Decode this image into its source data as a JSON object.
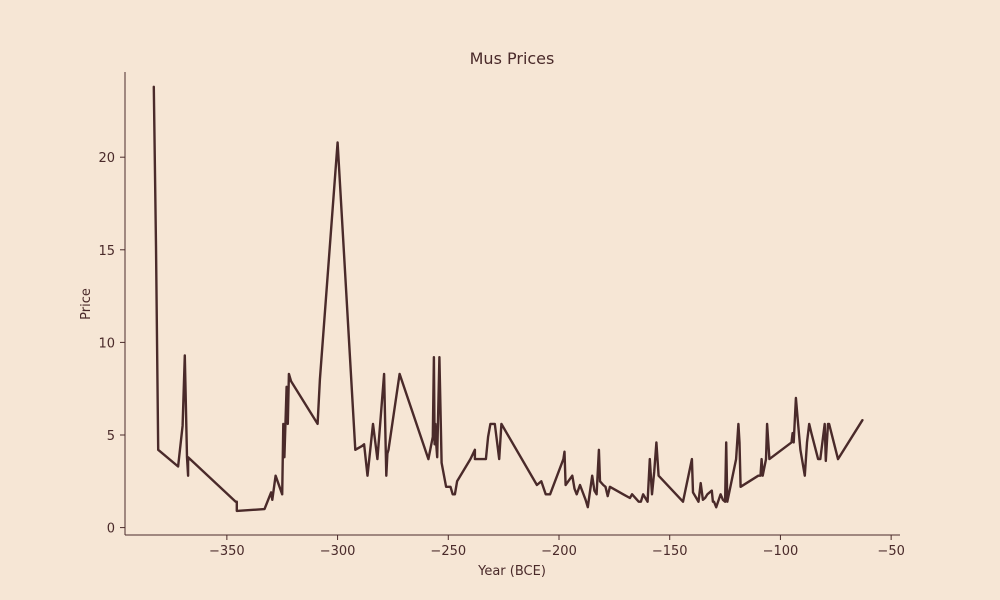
{
  "chart_data": {
    "type": "line",
    "title": "Mus Prices",
    "xlabel": "Year (BCE)",
    "ylabel": "Price",
    "xlim": [
      -396,
      -46
    ],
    "ylim": [
      -0.4,
      24.6
    ],
    "xticks": [
      -350,
      -300,
      -250,
      -200,
      -150,
      -100,
      -50
    ],
    "xtick_labels": [
      "−350",
      "−300",
      "−250",
      "−200",
      "−150",
      "−100",
      "−50"
    ],
    "yticks": [
      0,
      5,
      10,
      15,
      20
    ],
    "ytick_labels": [
      "0",
      "5",
      "10",
      "15",
      "20"
    ],
    "grid": false,
    "series": [
      {
        "color": "#4a2a2a",
        "x": [
          -383.0,
          -382.0,
          -381.0,
          -372.0,
          -370.0,
          -369.0,
          -368.0,
          -367.5,
          -367.5,
          -346.0,
          -345.5,
          -345.5,
          -333.0,
          -330.0,
          -329.5,
          -328.0,
          -325.0,
          -324.5,
          -324.0,
          -323.0,
          -322.5,
          -322.0,
          -321.0,
          -309.0,
          -308.0,
          -300.0,
          -292.0,
          -289.0,
          -288.0,
          -286.5,
          -284.0,
          -282.0,
          -279.0,
          -278.0,
          -277.5,
          -277.0,
          -272.0,
          -259.0,
          -257.0,
          -256.5,
          -256.2,
          -255.8,
          -255.5,
          -255.0,
          -254.0,
          -253.0,
          -251.0,
          -249.0,
          -248.0,
          -247.0,
          -246.0,
          -240.0,
          -238.0,
          -238.0,
          -233.0,
          -232.0,
          -231.0,
          -229.0,
          -227.0,
          -226.0,
          -210.0,
          -208.0,
          -206.0,
          -204.0,
          -198.0,
          -197.5,
          -197.0,
          -194.0,
          -193.0,
          -192.0,
          -190.5,
          -188.0,
          -187.0,
          -185.0,
          -184.0,
          -183.0,
          -182.0,
          -181.5,
          -180.0,
          -179.0,
          -178.0,
          -177.0,
          -174.0,
          -171.0,
          -168.0,
          -167.0,
          -164.0,
          -163.0,
          -162.0,
          -160.0,
          -159.0,
          -158.0,
          -157.0,
          -156.0,
          -155.0,
          -144.0,
          -140.0,
          -139.5,
          -138.0,
          -137.0,
          -136.0,
          -135.0,
          -134.0,
          -133.0,
          -131.0,
          -130.5,
          -130.0,
          -129.0,
          -127.0,
          -126.0,
          -125.0,
          -124.5,
          -124.0,
          -120.0,
          -119.0,
          -118.5,
          -118.0,
          -110.0,
          -109.0,
          -108.5,
          -108.0,
          -106.5,
          -106.0,
          -105.0,
          -95.0,
          -94.5,
          -94.0,
          -93.0,
          -92.0,
          -91.0,
          -89.0,
          -88.0,
          -87.0,
          -86.0,
          -83.0,
          -82.0,
          -80.0,
          -79.5,
          -78.5,
          -78.0,
          -74.0,
          -63.0
        ],
        "y": [
          23.8,
          15.2,
          4.2,
          3.3,
          5.5,
          9.3,
          3.8,
          2.8,
          3.8,
          1.4,
          1.4,
          0.9,
          1.0,
          1.9,
          1.5,
          2.8,
          1.8,
          5.6,
          3.8,
          7.6,
          5.6,
          8.3,
          7.9,
          5.6,
          8.0,
          20.8,
          4.2,
          4.4,
          4.5,
          2.8,
          5.6,
          3.7,
          8.3,
          2.8,
          4.0,
          4.2,
          8.3,
          3.7,
          4.9,
          9.2,
          4.5,
          5.6,
          4.6,
          3.8,
          9.2,
          3.5,
          2.2,
          2.2,
          1.8,
          1.8,
          2.5,
          3.7,
          4.2,
          3.7,
          3.7,
          4.9,
          5.6,
          5.6,
          3.7,
          5.6,
          2.3,
          2.5,
          1.8,
          1.8,
          3.7,
          4.1,
          2.3,
          2.8,
          2.1,
          1.8,
          2.3,
          1.5,
          1.1,
          2.8,
          2.0,
          1.8,
          4.2,
          2.5,
          2.3,
          2.2,
          1.7,
          2.2,
          2.0,
          1.8,
          1.6,
          1.8,
          1.4,
          1.4,
          1.8,
          1.4,
          3.7,
          1.8,
          3.0,
          4.6,
          2.8,
          1.4,
          3.7,
          1.9,
          1.6,
          1.4,
          2.4,
          1.5,
          1.6,
          1.8,
          2.0,
          1.4,
          1.4,
          1.1,
          1.8,
          1.5,
          1.4,
          4.6,
          1.4,
          3.7,
          5.6,
          4.6,
          2.2,
          2.8,
          2.8,
          3.7,
          2.8,
          3.7,
          5.6,
          3.7,
          4.6,
          5.1,
          4.6,
          7.0,
          5.6,
          4.2,
          2.8,
          4.6,
          5.6,
          5.1,
          3.7,
          3.7,
          5.6,
          3.6,
          5.6,
          5.6,
          3.7,
          5.8
        ]
      }
    ]
  }
}
